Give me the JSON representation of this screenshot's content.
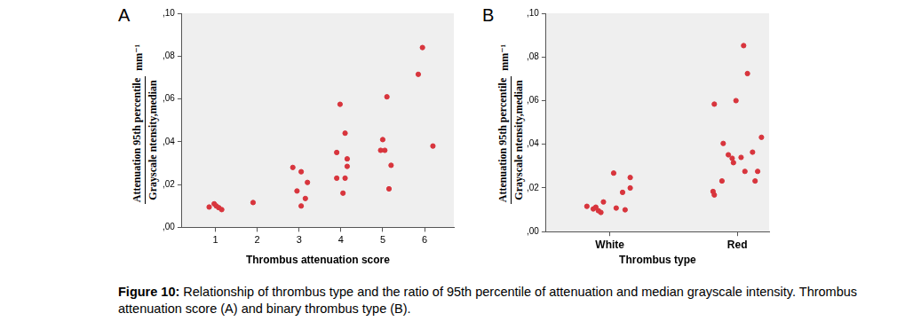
{
  "chart_data": [
    {
      "type": "scatter",
      "title": "A",
      "xlabel": "Thrombus attenuation score",
      "ylabel": [
        "Attenuation 95th percentile",
        "Grayscale ntensity,median"
      ],
      "yunit": "mm⁻¹",
      "x": [
        0.85,
        0.97,
        1.02,
        1.08,
        1.15,
        1.9,
        2.85,
        3.05,
        3.2,
        2.95,
        3.15,
        3.05,
        3.98,
        4.1,
        3.9,
        4.15,
        4.15,
        3.9,
        4.1,
        4.05,
        5.1,
        5.0,
        4.95,
        5.05,
        5.2,
        5.15,
        5.95,
        5.85,
        6.2
      ],
      "values": [
        0.0095,
        0.011,
        0.01,
        0.0092,
        0.0083,
        0.0116,
        0.028,
        0.026,
        0.021,
        0.017,
        0.0135,
        0.01,
        0.0575,
        0.044,
        0.035,
        0.032,
        0.0285,
        0.023,
        0.023,
        0.016,
        0.061,
        0.041,
        0.036,
        0.036,
        0.029,
        0.018,
        0.084,
        0.0715,
        0.038
      ],
      "color": "#d8353d",
      "xlim": [
        0.2,
        6.7
      ],
      "xticks": [
        1,
        2,
        3,
        4,
        5,
        6
      ],
      "ylim": [
        0,
        0.1
      ],
      "yticks": [
        {
          "value": 0,
          "label": ",00"
        },
        {
          "value": 0.02,
          "label": ",02"
        },
        {
          "value": 0.04,
          "label": ",04"
        },
        {
          "value": 0.06,
          "label": ",06"
        },
        {
          "value": 0.08,
          "label": ",08"
        },
        {
          "value": 0.1,
          "label": ",10"
        }
      ],
      "grid": false
    },
    {
      "type": "scatter",
      "title": "B",
      "xlabel": "Thrombus type",
      "ylabel": [
        "Attenuation 95th percentile",
        "Grayscale ntensity,median"
      ],
      "yunit": "mm⁻¹",
      "x": [
        0.82,
        0.87,
        0.89,
        0.91,
        0.93,
        0.95,
        1.03,
        1.05,
        1.1,
        1.12,
        1.16,
        1.16,
        1.82,
        1.81,
        1.82,
        1.88,
        1.89,
        1.93,
        1.96,
        1.97,
        1.99,
        2.03,
        2.05,
        2.06,
        2.08,
        2.12,
        2.14,
        2.16,
        2.19
      ],
      "values": [
        0.0116,
        0.0104,
        0.0112,
        0.0096,
        0.0088,
        0.0136,
        0.0268,
        0.0108,
        0.018,
        0.01,
        0.0248,
        0.02,
        0.0584,
        0.0184,
        0.0168,
        0.0232,
        0.0404,
        0.0352,
        0.0336,
        0.0316,
        0.06,
        0.034,
        0.0852,
        0.0276,
        0.0724,
        0.0364,
        0.0232,
        0.0276,
        0.0432
      ],
      "color": "#d8353d",
      "xlim": [
        0.5,
        2.25
      ],
      "xticks": [
        {
          "value": 1,
          "label": "White"
        },
        {
          "value": 2,
          "label": "Red"
        }
      ],
      "ylim": [
        0,
        0.1
      ],
      "yticks": [
        {
          "value": 0,
          "label": ",00"
        },
        {
          "value": 0.02,
          "label": ",02"
        },
        {
          "value": 0.04,
          "label": ",04"
        },
        {
          "value": 0.06,
          "label": ",06"
        },
        {
          "value": 0.08,
          "label": ",08"
        },
        {
          "value": 0.1,
          "label": ",10"
        }
      ],
      "grid": false
    }
  ],
  "caption": {
    "label": "Figure 10:",
    "text": "Relationship of thrombus type and the ratio of 95th percentile of attenuation and median grayscale intensity. Thrombus attenuation score (A) and binary thrombus type (B)."
  }
}
